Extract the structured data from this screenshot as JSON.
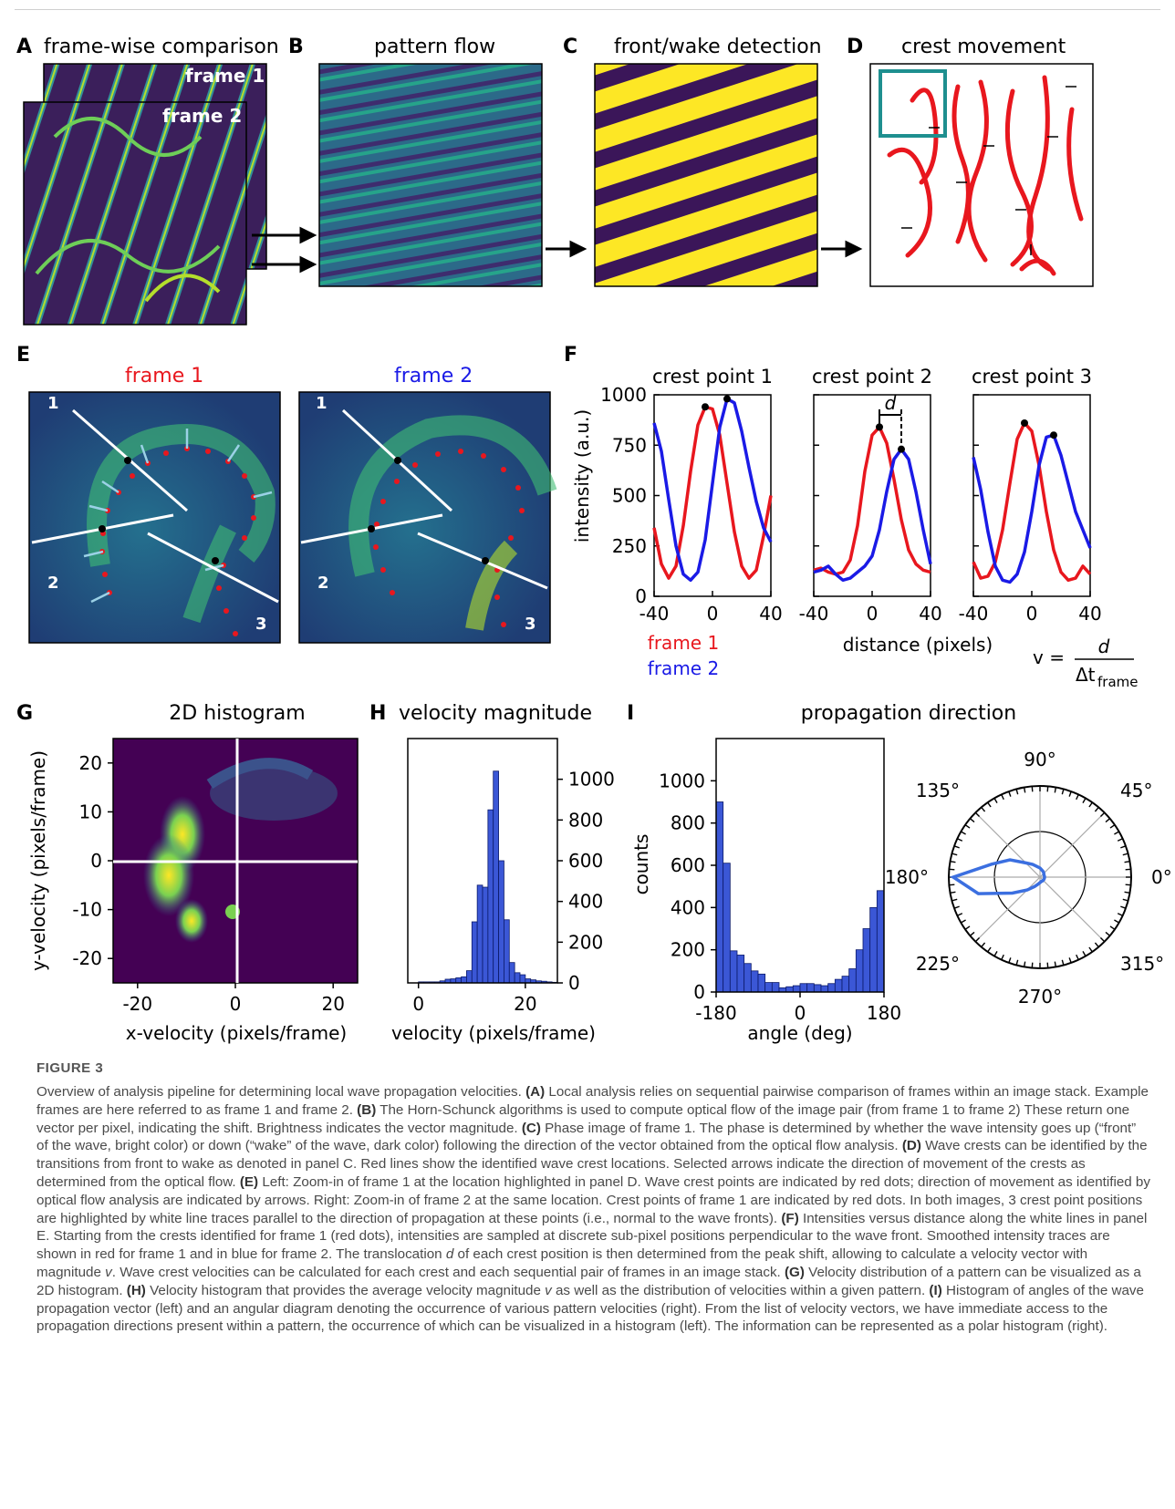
{
  "panels": {
    "A": {
      "letter": "A",
      "title": "frame-wise comparison",
      "frame1": "frame 1",
      "frame2": "frame 2"
    },
    "B": {
      "letter": "B",
      "title": "pattern flow"
    },
    "C": {
      "letter": "C",
      "title": "front/wake detection"
    },
    "D": {
      "letter": "D",
      "title": "crest movement"
    },
    "E": {
      "letter": "E",
      "left_title": "frame 1",
      "right_title": "frame 2",
      "line_labels": [
        "1",
        "2",
        "3"
      ]
    },
    "F": {
      "letter": "F",
      "titles": [
        "crest point 1",
        "crest point 2",
        "crest point 3"
      ],
      "ylabel": "intensity (a.u.)",
      "xlabel": "distance (pixels)",
      "yticks": [
        "1000",
        "750",
        "500",
        "250",
        "0"
      ],
      "xticks": [
        "-40",
        "0",
        "40"
      ],
      "d_label": "d",
      "legend": [
        "frame 1",
        "frame 2"
      ],
      "formula": {
        "lhs": "v =",
        "num": "d",
        "den": "Δt",
        "den_sub": "frame"
      }
    },
    "G": {
      "letter": "G",
      "title": "2D histogram",
      "ylabel": "y-velocity (pixels/frame)",
      "xlabel": "x-velocity (pixels/frame)",
      "yticks": [
        "20",
        "10",
        "0",
        "-10",
        "-20"
      ],
      "xticks": [
        "-20",
        "0",
        "20"
      ]
    },
    "H": {
      "letter": "H",
      "title": "velocity magnitude",
      "xlabel": "velocity (pixels/frame)",
      "yticks": [
        "1000",
        "800",
        "600",
        "400",
        "200",
        "0"
      ],
      "xticks": [
        "0",
        "20"
      ]
    },
    "I": {
      "letter": "I",
      "title": "propagation direction",
      "ylabel": "counts",
      "xlabel": "angle (deg)",
      "yticks": [
        "1000",
        "800",
        "600",
        "400",
        "200",
        "0"
      ],
      "xticks": [
        "-180",
        "0",
        "180"
      ],
      "polar_labels": [
        "90°",
        "45°",
        "0°",
        "315°",
        "270°",
        "225°",
        "180°",
        "135°"
      ]
    }
  },
  "chart_data": [
    {
      "type": "line",
      "title": "crest point 1",
      "xlim": [
        -40,
        40
      ],
      "ylim": [
        0,
        1000
      ],
      "series": [
        {
          "name": "frame 1",
          "color": "#e8171e",
          "x": [
            -40,
            -35,
            -30,
            -25,
            -20,
            -15,
            -10,
            -5,
            0,
            5,
            10,
            15,
            20,
            25,
            30,
            35,
            40
          ],
          "y": [
            340,
            160,
            90,
            150,
            350,
            620,
            850,
            940,
            930,
            800,
            560,
            320,
            150,
            90,
            130,
            300,
            500
          ]
        },
        {
          "name": "frame 2",
          "color": "#1a1ae6",
          "x": [
            -40,
            -35,
            -30,
            -25,
            -20,
            -15,
            -10,
            -5,
            0,
            5,
            10,
            15,
            20,
            25,
            30,
            35,
            40
          ],
          "y": [
            860,
            720,
            480,
            250,
            110,
            80,
            120,
            280,
            560,
            840,
            980,
            960,
            820,
            640,
            470,
            340,
            270
          ]
        }
      ]
    },
    {
      "type": "line",
      "title": "crest point 2",
      "xlim": [
        -40,
        40
      ],
      "ylim": [
        0,
        1000
      ],
      "series": [
        {
          "name": "frame 1",
          "color": "#e8171e",
          "x": [
            -40,
            -35,
            -30,
            -25,
            -20,
            -15,
            -10,
            -5,
            0,
            5,
            10,
            15,
            20,
            25,
            30,
            35,
            40
          ],
          "y": [
            130,
            140,
            120,
            110,
            120,
            180,
            350,
            620,
            800,
            840,
            760,
            580,
            380,
            230,
            160,
            130,
            120
          ]
        },
        {
          "name": "frame 2",
          "color": "#1a1ae6",
          "x": [
            -40,
            -35,
            -30,
            -25,
            -20,
            -15,
            -10,
            -5,
            0,
            5,
            10,
            15,
            20,
            25,
            30,
            35,
            40
          ],
          "y": [
            120,
            130,
            150,
            110,
            80,
            90,
            120,
            150,
            200,
            330,
            520,
            680,
            730,
            680,
            520,
            330,
            160
          ]
        }
      ]
    },
    {
      "type": "line",
      "title": "crest point 3",
      "xlim": [
        -40,
        40
      ],
      "ylim": [
        0,
        1000
      ],
      "series": [
        {
          "name": "frame 1",
          "color": "#e8171e",
          "x": [
            -40,
            -35,
            -30,
            -25,
            -20,
            -15,
            -10,
            -5,
            0,
            5,
            10,
            15,
            20,
            25,
            30,
            35,
            40
          ],
          "y": [
            170,
            90,
            100,
            170,
            330,
            560,
            780,
            860,
            820,
            650,
            420,
            230,
            120,
            80,
            90,
            150,
            110
          ]
        },
        {
          "name": "frame 2",
          "color": "#1a1ae6",
          "x": [
            -40,
            -35,
            -30,
            -25,
            -20,
            -15,
            -10,
            -5,
            0,
            5,
            10,
            15,
            20,
            25,
            30,
            35,
            40
          ],
          "y": [
            690,
            530,
            320,
            150,
            80,
            70,
            110,
            220,
            420,
            650,
            790,
            800,
            700,
            560,
            420,
            330,
            240
          ]
        }
      ]
    },
    {
      "type": "bar",
      "title": "velocity magnitude",
      "xlabel": "velocity (pixels/frame)",
      "xlim": [
        -2,
        26
      ],
      "ylim": [
        0,
        1200
      ],
      "bin_width": 1,
      "x": [
        0,
        1,
        2,
        3,
        4,
        5,
        6,
        7,
        8,
        9,
        10,
        11,
        12,
        13,
        14,
        15,
        16,
        17,
        18,
        19,
        20,
        21,
        22,
        23,
        24,
        25
      ],
      "values": [
        5,
        5,
        5,
        5,
        10,
        18,
        20,
        25,
        30,
        60,
        300,
        480,
        470,
        850,
        1040,
        600,
        310,
        100,
        50,
        40,
        20,
        15,
        10,
        8,
        5,
        3
      ]
    },
    {
      "type": "bar",
      "title": "propagation direction",
      "xlabel": "angle (deg)",
      "ylabel": "counts",
      "xlim": [
        -180,
        180
      ],
      "ylim": [
        0,
        1200
      ],
      "bin_width": 15,
      "x": [
        -172.5,
        -157.5,
        -142.5,
        -127.5,
        -112.5,
        -97.5,
        -82.5,
        -67.5,
        -52.5,
        -37.5,
        -22.5,
        -7.5,
        7.5,
        22.5,
        37.5,
        52.5,
        67.5,
        82.5,
        97.5,
        112.5,
        127.5,
        142.5,
        157.5,
        172.5
      ],
      "values": [
        900,
        610,
        195,
        175,
        135,
        100,
        85,
        45,
        45,
        20,
        25,
        30,
        40,
        40,
        35,
        30,
        40,
        60,
        75,
        110,
        200,
        300,
        400,
        480
      ]
    },
    {
      "type": "heatmap",
      "title": "2D histogram",
      "xlabel": "x-velocity (pixels/frame)",
      "ylabel": "y-velocity (pixels/frame)",
      "xlim": [
        -25,
        25
      ],
      "ylim": [
        -25,
        25
      ],
      "hotspots": [
        {
          "x": -14,
          "y": -2,
          "weight": 1.0
        },
        {
          "x": -12,
          "y": 6,
          "weight": 0.8
        },
        {
          "x": -10,
          "y": -8,
          "weight": 0.7
        },
        {
          "x": -1,
          "y": -10,
          "weight": 0.6
        }
      ]
    },
    {
      "type": "line",
      "title": "polar histogram",
      "theta_deg": [
        0,
        15,
        30,
        45,
        60,
        75,
        90,
        105,
        120,
        135,
        150,
        165,
        180,
        195,
        210,
        225,
        240,
        255,
        270,
        285,
        300,
        315,
        330,
        345
      ],
      "r": [
        0.05,
        0.05,
        0.05,
        0.06,
        0.07,
        0.08,
        0.1,
        0.12,
        0.16,
        0.22,
        0.38,
        0.55,
        0.95,
        0.7,
        0.35,
        0.2,
        0.12,
        0.08,
        0.06,
        0.05,
        0.05,
        0.05,
        0.05,
        0.05
      ]
    }
  ],
  "caption": {
    "title": "FIGURE 3",
    "parts": [
      {
        "t": "Overview of analysis pipeline for determining local wave propagation velocities. "
      },
      {
        "b": "(A)"
      },
      {
        "t": " Local analysis relies on sequential pairwise comparison of frames within an image stack. Example frames are here referred to as frame 1 and frame 2. "
      },
      {
        "b": "(B)"
      },
      {
        "t": " The Horn-Schunck algorithms is used to compute optical flow of the image pair (from frame 1 to frame 2) These return one vector per pixel, indicating the shift. Brightness indicates the vector magnitude. "
      },
      {
        "b": "(C)"
      },
      {
        "t": " Phase image of frame 1. The phase is determined by whether the wave intensity goes up (“front” of the wave, bright color) or down (“wake” of the wave, dark color) following the direction of the vector obtained from the optical flow analysis. "
      },
      {
        "b": "(D)"
      },
      {
        "t": " Wave crests can be identified by the transitions from front to wake as denoted in panel C. Red lines show the identified wave crest locations. Selected arrows indicate the direction of movement of the crests as determined from the optical flow. "
      },
      {
        "b": "(E)"
      },
      {
        "t": " Left: Zoom-in of frame 1 at the location highlighted in panel D. Wave crest points are indicated by red dots; direction of movement as identified by optical flow analysis are indicated by arrows. Right: Zoom-in of frame 2 at the same location. Crest points of frame 1 are indicated by red dots. In both images, 3 crest point positions are highlighted by white line traces parallel to the direction of propagation at these points (i.e., normal to the wave fronts). "
      },
      {
        "b": "(F)"
      },
      {
        "t": " Intensities versus distance along the white lines in panel E. Starting from the crests identified for frame 1 (red dots), intensities are sampled at discrete sub-pixel positions perpendicular to the wave front. Smoothed intensity traces are shown in red for frame 1 and in blue for frame 2. The translocation "
      },
      {
        "i": "d"
      },
      {
        "t": " of each crest position is then determined from the peak shift, allowing to calculate a velocity vector with magnitude "
      },
      {
        "i": "v"
      },
      {
        "t": ". Wave crest velocities can be calculated for each crest and each sequential pair of frames in an image stack. "
      },
      {
        "b": "(G)"
      },
      {
        "t": " Velocity distribution of a pattern can be visualized as a 2D histogram. "
      },
      {
        "b": "(H)"
      },
      {
        "t": " Velocity histogram that provides the average velocity magnitude "
      },
      {
        "i": "v"
      },
      {
        "t": " as well as the distribution of velocities within a given pattern. "
      },
      {
        "b": "(I)"
      },
      {
        "t": " Histogram of angles of the wave propagation vector (left) and an angular diagram denoting the occurrence of various pattern velocities (right). From the list of velocity vectors, we have immediate access to the propagation directions present within a pattern, the occurrence of which can be visualized in a histogram (left). The information can be represented as a polar histogram (right)."
      }
    ]
  }
}
